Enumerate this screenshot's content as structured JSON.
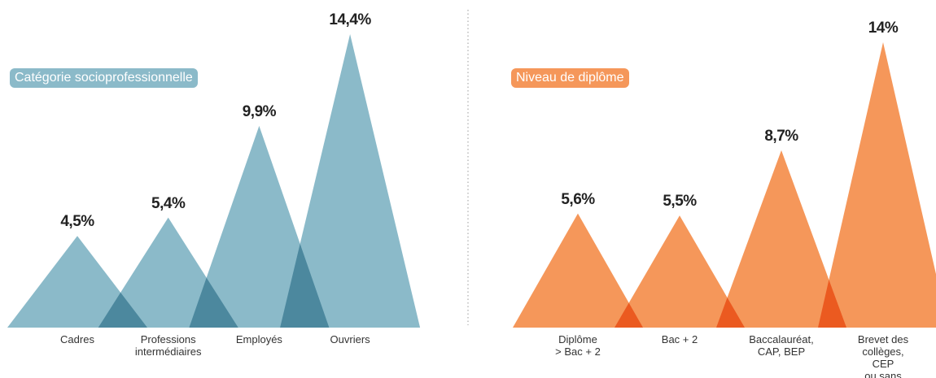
{
  "chart_data": [
    {
      "type": "peak",
      "title": "Catégorie socioprofessionnelle",
      "color": "#8bbac9",
      "categories": [
        "Cadres",
        "Professions\nintermédiaires",
        "Employés",
        "Ouvriers"
      ],
      "values": [
        4.5,
        5.4,
        9.9,
        14.4
      ],
      "value_labels": [
        "4,5%",
        "5,4%",
        "9,9%",
        "14,4%"
      ]
    },
    {
      "type": "peak",
      "title": "Niveau de diplôme",
      "color": "#f5975a",
      "categories": [
        "Diplôme\n> Bac + 2",
        "Bac + 2",
        "Baccalauréat,\nCAP, BEP",
        "Brevet des\ncollèges, CEP\nou sans diplôme"
      ],
      "values": [
        5.6,
        5.5,
        8.7,
        14
      ],
      "value_labels": [
        "5,6%",
        "5,5%",
        "8,7%",
        "14%"
      ]
    }
  ]
}
